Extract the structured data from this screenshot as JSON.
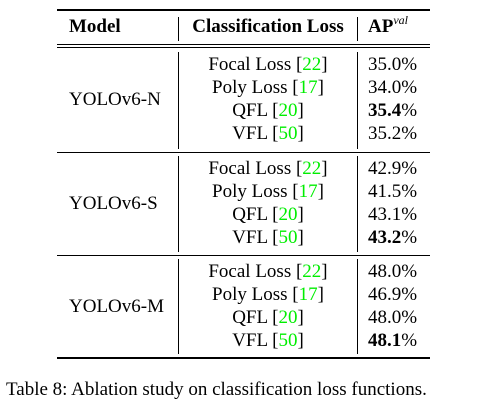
{
  "table": {
    "headers": {
      "model": "Model",
      "loss": "Classification Loss",
      "ap": "AP",
      "ap_sup": "val"
    },
    "groups": [
      {
        "model": "YOLOv6-N",
        "rows": [
          {
            "loss": "Focal Loss",
            "ref": "22",
            "ap": "35.0%",
            "best": false
          },
          {
            "loss": "Poly Loss",
            "ref": "17",
            "ap": "34.0%",
            "best": false
          },
          {
            "loss": "QFL",
            "ref": "20",
            "ap": "35.4",
            "best": true
          },
          {
            "loss": "VFL",
            "ref": "50",
            "ap": "35.2%",
            "best": false
          }
        ]
      },
      {
        "model": "YOLOv6-S",
        "rows": [
          {
            "loss": "Focal Loss",
            "ref": "22",
            "ap": "42.9%",
            "best": false
          },
          {
            "loss": "Poly Loss",
            "ref": "17",
            "ap": "41.5%",
            "best": false
          },
          {
            "loss": "QFL",
            "ref": "20",
            "ap": "43.1%",
            "best": false
          },
          {
            "loss": "VFL",
            "ref": "50",
            "ap": "43.2",
            "best": true
          }
        ]
      },
      {
        "model": "YOLOv6-M",
        "rows": [
          {
            "loss": "Focal Loss",
            "ref": "22",
            "ap": "48.0%",
            "best": false
          },
          {
            "loss": "Poly Loss",
            "ref": "17",
            "ap": "46.9%",
            "best": false
          },
          {
            "loss": "QFL",
            "ref": "20",
            "ap": "48.0%",
            "best": false
          },
          {
            "loss": "VFL",
            "ref": "50",
            "ap": "48.1",
            "best": true
          }
        ]
      }
    ],
    "best_suffix": "%"
  },
  "caption": "Table 8: Ablation study on classification loss functions.",
  "colors": {
    "citation": "#00ee00",
    "text": "#000000"
  }
}
